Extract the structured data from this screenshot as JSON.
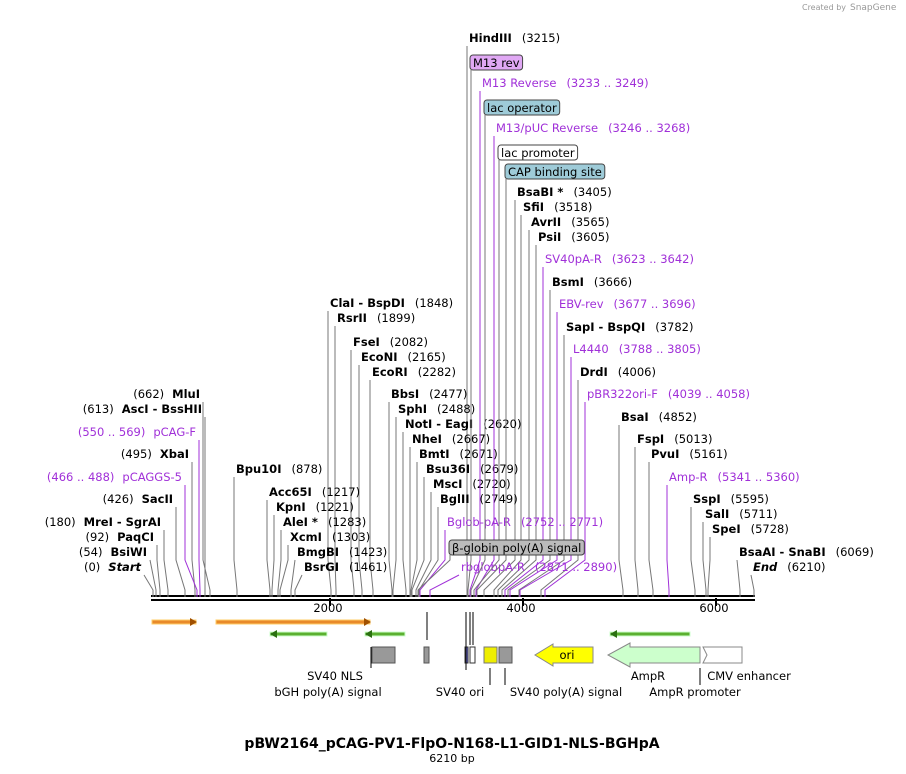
{
  "header": {
    "created_by": "Created by",
    "brand": "SnapGene"
  },
  "title": "pBW2164_pCAG-PV1-FlpO-N168-L1-GID1-NLS-BGHpA",
  "length": "6210 bp",
  "ruler": [
    "2000",
    "4000",
    "6000"
  ],
  "enzymes": [
    {
      "name": "HindIII",
      "position": "(3215)"
    },
    {
      "name": "BsaBI *",
      "position": "(3405)"
    },
    {
      "name": "SfiI",
      "position": "(3518)"
    },
    {
      "name": "AvrII",
      "position": "(3565)"
    },
    {
      "name": "PsiI",
      "position": "(3605)"
    },
    {
      "name": "BsmI",
      "position": "(3666)"
    },
    {
      "name": "SapI  -  BspQI",
      "position": "(3782)"
    },
    {
      "name": "DrdI",
      "position": "(4006)"
    },
    {
      "name": "BsaI",
      "position": "(4852)"
    },
    {
      "name": "FspI",
      "position": "(5013)"
    },
    {
      "name": "PvuI",
      "position": "(5161)"
    },
    {
      "name": "SspI",
      "position": "(5595)"
    },
    {
      "name": "SalI",
      "position": "(5711)"
    },
    {
      "name": "SpeI",
      "position": "(5728)"
    },
    {
      "name": "BsaAI  -  SnaBI",
      "position": "(6069)"
    },
    {
      "name": "End",
      "position": "(6210)"
    },
    {
      "name": "ClaI  -  BspDI",
      "position": "(1848)"
    },
    {
      "name": "RsrII",
      "position": "(1899)"
    },
    {
      "name": "FseI",
      "position": "(2082)"
    },
    {
      "name": "EcoNI",
      "position": "(2165)"
    },
    {
      "name": "EcoRI",
      "position": "(2282)"
    },
    {
      "name": "BbsI",
      "position": "(2477)"
    },
    {
      "name": "SphI",
      "position": "(2488)"
    },
    {
      "name": "NotI  -  EagI",
      "position": "(2620)"
    },
    {
      "name": "NheI",
      "position": "(2667)"
    },
    {
      "name": "BmtI",
      "position": "(2671)"
    },
    {
      "name": "Bsu36I",
      "position": "(2679)"
    },
    {
      "name": "MscI",
      "position": "(2720)"
    },
    {
      "name": "BglII",
      "position": "(2749)"
    },
    {
      "name": "Bpu10I",
      "position": "(878)"
    },
    {
      "name": "Acc65I",
      "position": "(1217)"
    },
    {
      "name": "KpnI",
      "position": "(1221)"
    },
    {
      "name": "AleI *",
      "position": "(1283)"
    },
    {
      "name": "XcmI",
      "position": "(1303)"
    },
    {
      "name": "BmgBI",
      "position": "(1423)"
    },
    {
      "name": "BsrGI",
      "position": "(1461)"
    },
    {
      "name": "MluI",
      "position": "(662)"
    },
    {
      "name": "AscI  -  BssHII",
      "position": "(613)"
    },
    {
      "name": "XbaI",
      "position": "(495)"
    },
    {
      "name": "SacII",
      "position": "(426)"
    },
    {
      "name": "MreI  -  SgrAI",
      "position": "(180)"
    },
    {
      "name": "PaqCI",
      "position": "(92)"
    },
    {
      "name": "BsiWI",
      "position": "(54)"
    },
    {
      "name": "Start",
      "position": "(0)"
    }
  ],
  "primers": [
    {
      "name": "M13 Reverse",
      "range": "(3233 .. 3249)"
    },
    {
      "name": "M13/pUC Reverse",
      "range": "(3246 .. 3268)"
    },
    {
      "name": "SV40pA-R",
      "range": "(3623 .. 3642)"
    },
    {
      "name": "EBV-rev",
      "range": "(3677 .. 3696)"
    },
    {
      "name": "L4440",
      "range": "(3788 .. 3805)"
    },
    {
      "name": "pBR322ori-F",
      "range": "(4039 .. 4058)"
    },
    {
      "name": "Amp-R",
      "range": "(5341 .. 5360)"
    },
    {
      "name": "Bglob-pA-R",
      "range": "(2752 .. 2771)"
    },
    {
      "name": "rbglobpA-R",
      "range": "(2871 .. 2890)"
    },
    {
      "name": "pCAG-F",
      "range": "(550 .. 569)"
    },
    {
      "name": "pCAGGS-5",
      "range": "(466 .. 488)"
    }
  ],
  "boxed_features": [
    "M13 rev",
    "lac operator",
    "lac promoter",
    "CAP binding site",
    "β-globin poly(A) signal"
  ],
  "features": [
    "SV40 NLS",
    "bGH poly(A) signal",
    "SV40 ori",
    "SV40 poly(A) signal",
    "ori",
    "AmpR",
    "AmpR promoter",
    "CMV enhancer"
  ]
}
